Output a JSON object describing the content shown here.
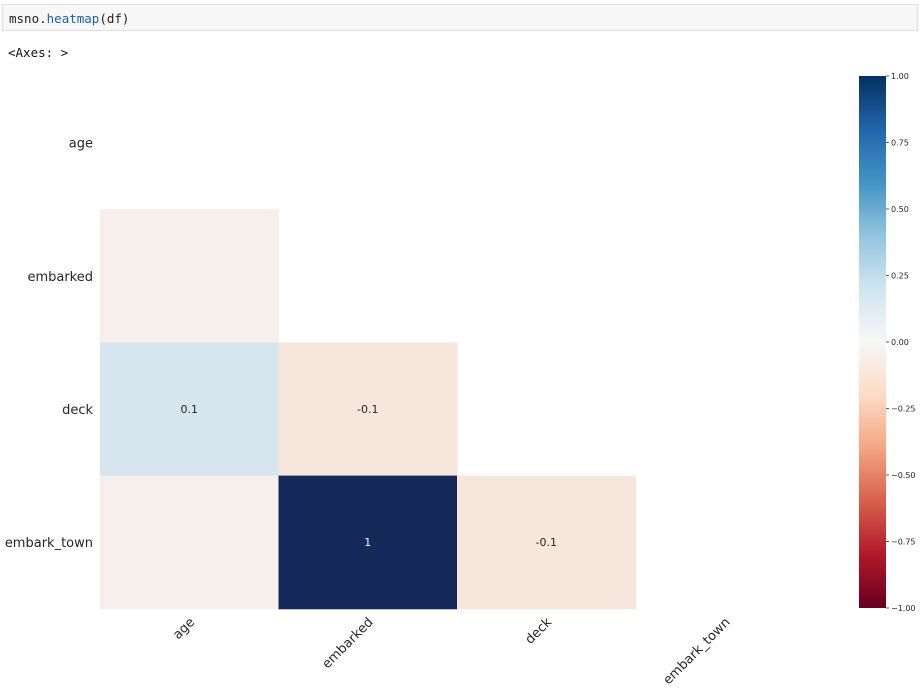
{
  "cell": {
    "code_obj": "msno.",
    "code_fn": "heatmap",
    "code_args": "(df)",
    "output": "<Axes: >"
  },
  "chart_data": {
    "type": "heatmap",
    "title": "",
    "xlabel": "",
    "ylabel": "",
    "columns": [
      "age",
      "embarked",
      "deck",
      "embark_town"
    ],
    "rows": [
      "age",
      "embarked",
      "deck",
      "embark_town"
    ],
    "mask": "upper-triangle-including-diagonal",
    "values": [
      [
        null,
        null,
        null,
        null
      ],
      [
        0.0,
        null,
        null,
        null
      ],
      [
        0.1,
        -0.1,
        null,
        null
      ],
      [
        0.0,
        1.0,
        -0.1,
        null
      ]
    ],
    "annotations": [
      [
        "",
        "",
        "",
        ""
      ],
      [
        "",
        "",
        "",
        ""
      ],
      [
        "0.1",
        "-0.1",
        "",
        ""
      ],
      [
        "",
        "1",
        "-0.1",
        ""
      ]
    ],
    "colormap": "RdBu",
    "vmin": -1,
    "vmax": 1,
    "colorbar_ticks": [
      {
        "value": 1.0,
        "label": "1.00"
      },
      {
        "value": 0.75,
        "label": "0.75"
      },
      {
        "value": 0.5,
        "label": "0.50"
      },
      {
        "value": 0.25,
        "label": "0.25"
      },
      {
        "value": 0.0,
        "label": "0.00"
      },
      {
        "value": -0.25,
        "label": "−0.25"
      },
      {
        "value": -0.5,
        "label": "−0.50"
      },
      {
        "value": -0.75,
        "label": "−0.75"
      },
      {
        "value": -1.0,
        "label": "−1.00"
      }
    ],
    "cell_colors": {
      "0.1": "#d7e5ef",
      "0.0": "#f7efeb",
      "-0.1": "#f6e6dc",
      "1.0": "#15295a"
    },
    "colorbar_stops": [
      "#67001f",
      "#b2182b",
      "#d6604d",
      "#f4a582",
      "#fddbc7",
      "#f7f7f7",
      "#d1e5f0",
      "#92c5de",
      "#4393c3",
      "#2166ac",
      "#053061"
    ]
  }
}
